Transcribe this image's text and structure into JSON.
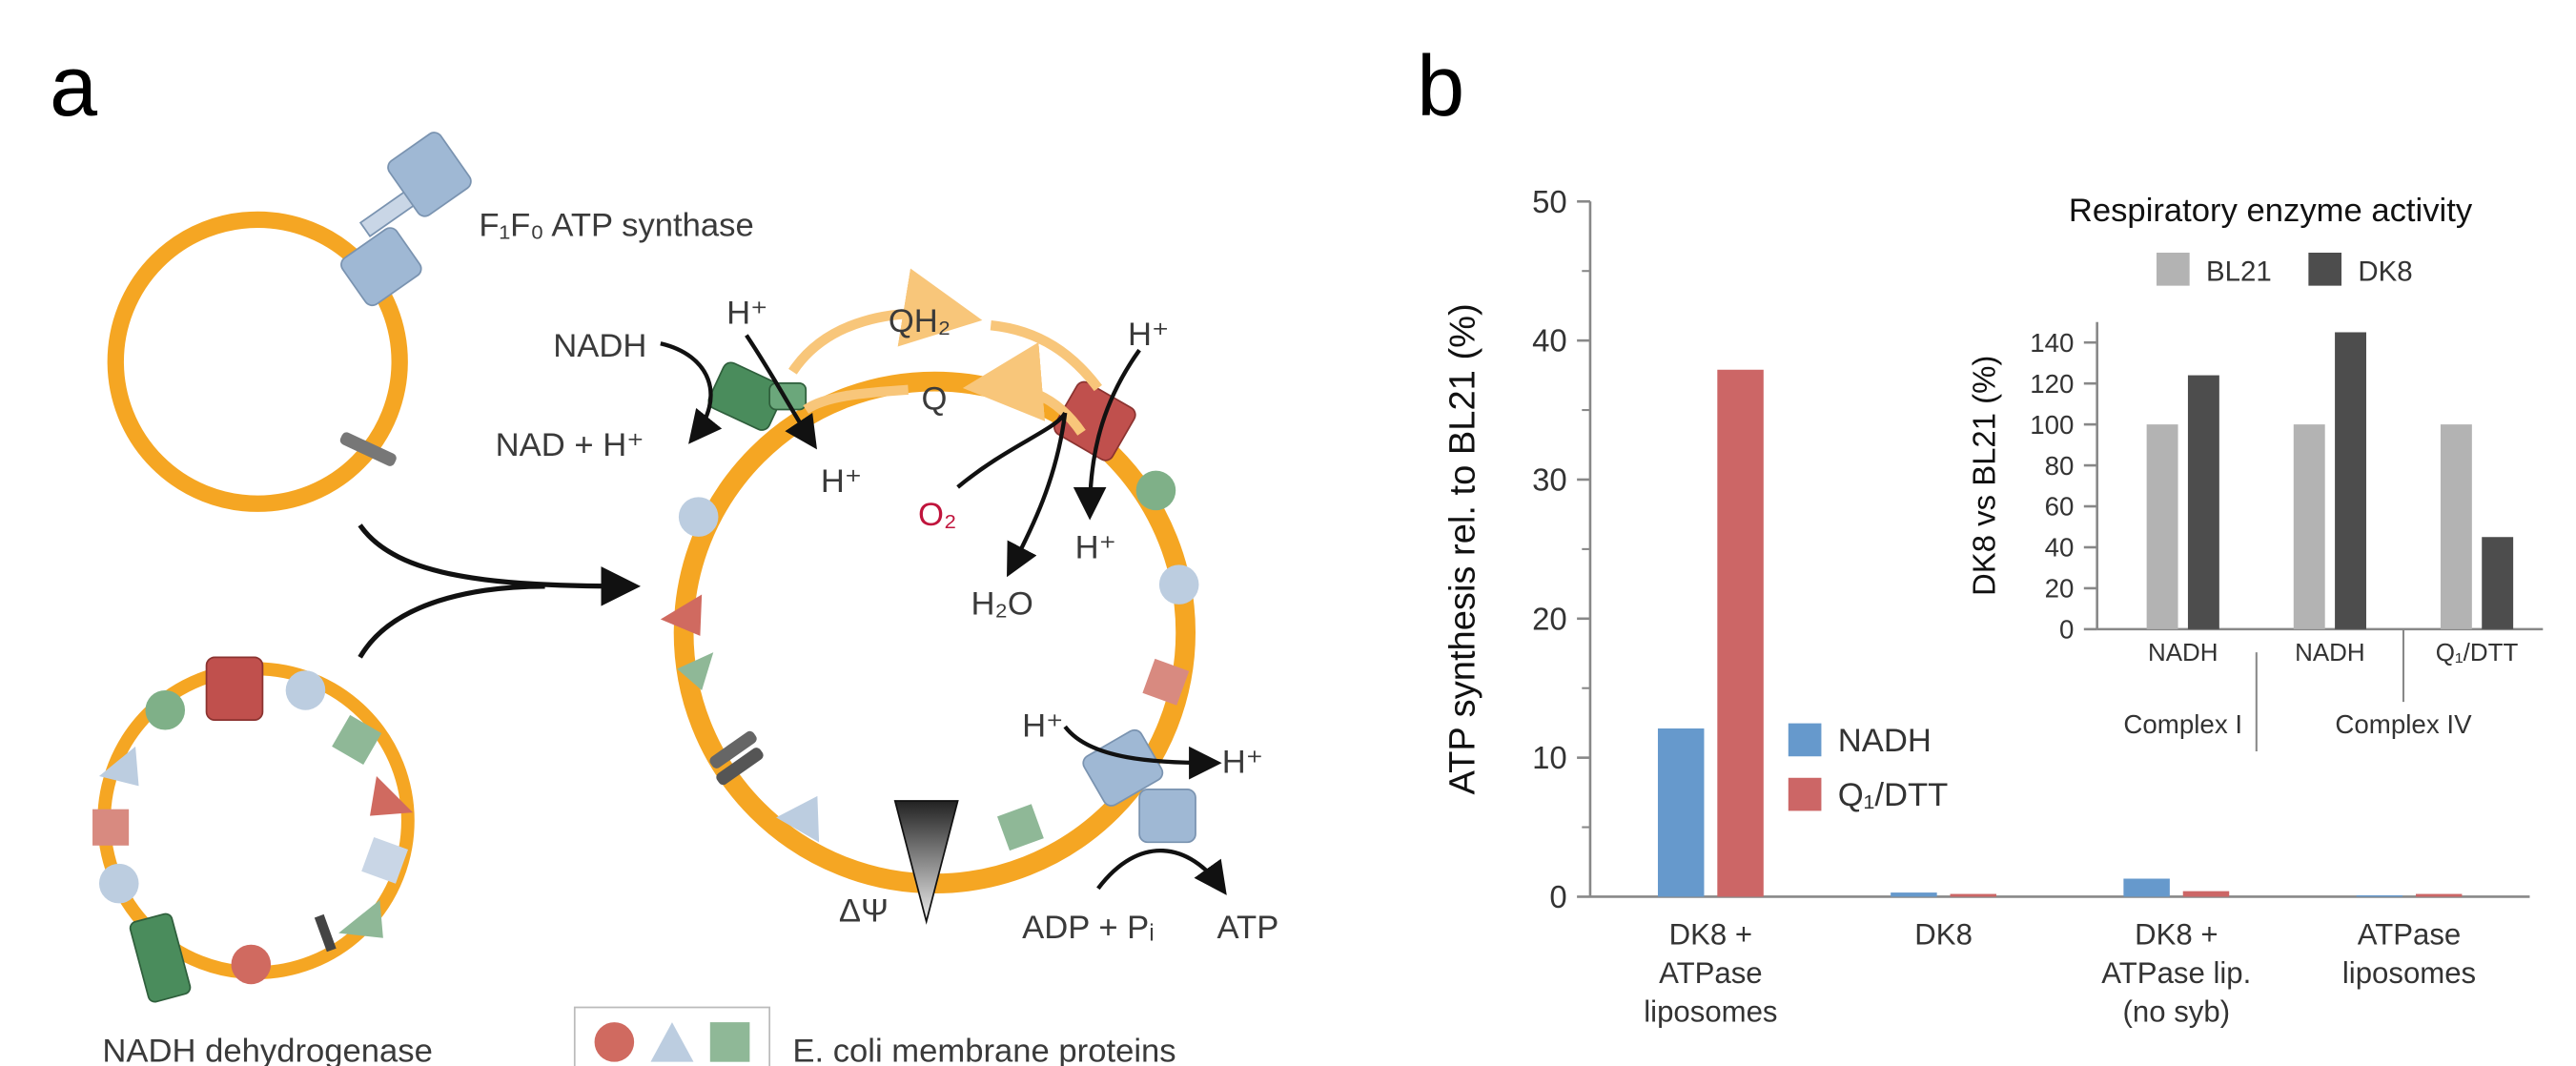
{
  "panel_labels": [
    "a",
    "b"
  ],
  "diagram": {
    "labels": [
      "F₁F₀ ATP synthase",
      "NADH",
      "NAD + H⁺",
      "H⁺",
      "H⁺",
      "QH₂",
      "Q",
      "H⁺",
      "O₂",
      "H⁺",
      "H₂O",
      "H⁺",
      "H⁺",
      "ΔΨ",
      "ADP + Pᵢ",
      "ATP",
      "NADH dehydrogenase",
      "E. coli membrane proteins"
    ]
  },
  "chart_data": [
    {
      "type": "bar",
      "y_label": "ATP synthesis rel. to BL21 (%)",
      "categories": [
        "DK8 +\nATPase\nliposomes",
        "DK8",
        "DK8 +\nATPase lip.\n(no syb)",
        "ATPase\nliposomes"
      ],
      "series": [
        {
          "name": "NADH",
          "color": "#6699cc",
          "values": [
            12.1,
            0.3,
            1.3,
            0.1
          ]
        },
        {
          "name": "Q₁/DTT",
          "color": "#cc6666",
          "values": [
            37.9,
            0.2,
            0.4,
            0.2
          ]
        }
      ],
      "ylim": [
        0,
        50
      ],
      "yticks": [
        0,
        10,
        20,
        30,
        40,
        50
      ],
      "legend": "center-right"
    },
    {
      "type": "bar",
      "title": "Respiratory enzyme activity",
      "y_label": "DK8 vs BL21 (%)",
      "categories": [
        "NADH",
        "NADH",
        "Q₁/DTT"
      ],
      "group_labels": [
        "Complex I",
        "Complex IV"
      ],
      "series": [
        {
          "name": "BL21",
          "color": "#b3b3b3",
          "values": [
            100,
            100,
            100
          ]
        },
        {
          "name": "DK8",
          "color": "#4d4d4d",
          "values": [
            124,
            145,
            45
          ]
        }
      ],
      "ylim": [
        0,
        150
      ],
      "yticks": [
        0,
        20,
        40,
        60,
        80,
        100,
        120,
        140
      ],
      "legend": "top"
    }
  ]
}
